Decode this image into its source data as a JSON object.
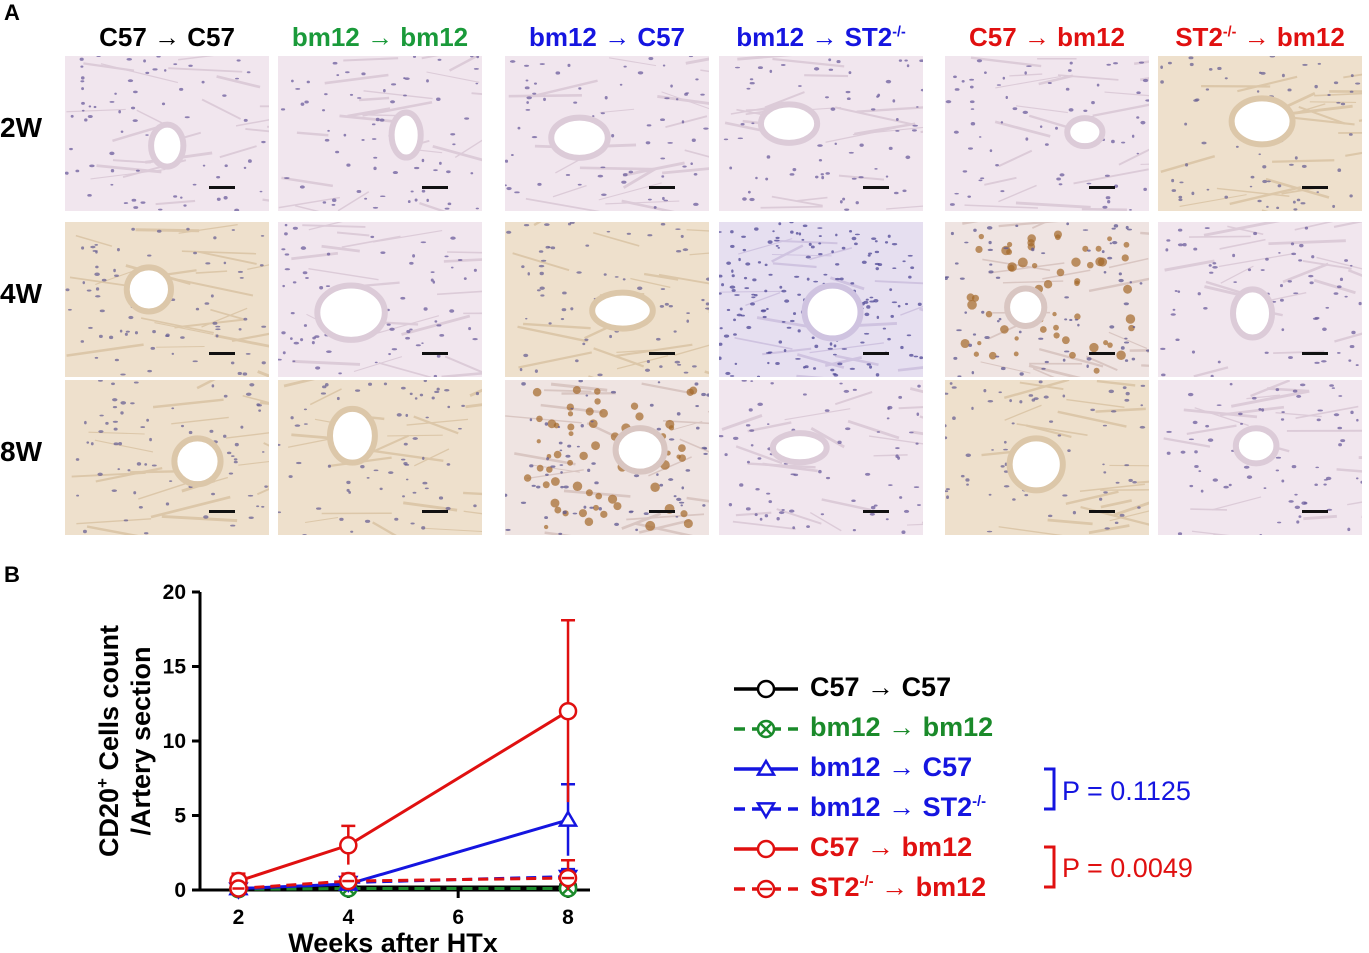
{
  "figure": {
    "panel_a_label": "A",
    "panel_b_label": "B",
    "columns": [
      {
        "label": "C57 → C57",
        "base": "C57 → C57",
        "sup": "",
        "tail": "",
        "color": "#000000",
        "tone": "pink"
      },
      {
        "label": "bm12 → bm12",
        "base": "bm12 → bm12",
        "sup": "",
        "tail": "",
        "color": "#1a9a3a",
        "tone": "pink"
      },
      {
        "label": "bm12 → C57",
        "base": "bm12 → C57",
        "sup": "",
        "tail": "",
        "color": "#1515e0",
        "tone": "pink"
      },
      {
        "label": "bm12 → ST2-/-",
        "base": "bm12 → ST2",
        "sup": "-/-",
        "tail": "",
        "color": "#1515e0",
        "tone": "pink"
      },
      {
        "label": "C57 → bm12",
        "base": "C57 → bm12",
        "sup": "",
        "tail": "",
        "color": "#e01010",
        "tone": "pink"
      },
      {
        "label": "ST2-/- → bm12",
        "base": "ST2",
        "sup": "-/-",
        "tail": " → bm12",
        "color": "#e01010",
        "tone": "tan"
      }
    ],
    "rows": [
      "2W",
      "4W",
      "8W"
    ],
    "tile_tones": [
      [
        "pink",
        "pink",
        "pink",
        "pink",
        "pink",
        "tan"
      ],
      [
        "tan",
        "pink",
        "tan",
        "purple",
        "brown",
        "pink"
      ],
      [
        "tan",
        "tan",
        "brown",
        "pink",
        "tan",
        "pink"
      ]
    ]
  },
  "chart_data": {
    "type": "line",
    "xlabel": "Weeks after HTx",
    "ylabel": "CD20+ Cells count /Artery section",
    "ylabel_line1": "CD20",
    "ylabel_sup": "+",
    "ylabel_line1_tail": " Cells count",
    "ylabel_line2": "/Artery section",
    "x": [
      2,
      4,
      8
    ],
    "xticks": [
      2,
      4,
      6,
      8
    ],
    "yticks": [
      0,
      5,
      10,
      15,
      20
    ],
    "xlim": [
      1.3,
      8.4
    ],
    "ylim": [
      0,
      20
    ],
    "series": [
      {
        "name": "C57 → C57",
        "values": [
          0.1,
          0.2,
          0.2
        ],
        "errors": [
          0.1,
          0.1,
          0.1
        ],
        "color": "#000000",
        "dash": "solid",
        "marker": "circle"
      },
      {
        "name": "bm12 → bm12",
        "values": [
          0.05,
          0.1,
          0.1
        ],
        "errors": [
          0.05,
          0.1,
          0.1
        ],
        "color": "#1a8a2a",
        "dash": "dashed",
        "marker": "circle-x"
      },
      {
        "name": "bm12 → C57",
        "values": [
          0.1,
          0.4,
          4.7
        ],
        "errors": [
          0.1,
          0.2,
          2.4
        ],
        "color": "#1515e0",
        "dash": "solid",
        "marker": "triangle-up"
      },
      {
        "name": "bm12 → ST2-/-",
        "values": [
          0.05,
          0.5,
          0.9
        ],
        "errors": [
          0.05,
          0.2,
          0.5
        ],
        "color": "#1515e0",
        "dash": "dashed",
        "marker": "triangle-down"
      },
      {
        "name": "C57 → bm12",
        "values": [
          0.6,
          3.0,
          12.0
        ],
        "errors": [
          0.5,
          1.3,
          6.1
        ],
        "color": "#e01010",
        "dash": "solid",
        "marker": "circle"
      },
      {
        "name": "ST2-/- → bm12",
        "values": [
          0.1,
          0.6,
          0.8
        ],
        "errors": [
          0.1,
          0.5,
          1.2
        ],
        "color": "#e01010",
        "dash": "dashed",
        "marker": "circle-minus"
      }
    ],
    "legend": [
      {
        "base": "C57",
        "arrow": "→",
        "end": "C57",
        "sup": "",
        "pre_sup": "",
        "color": "#000000"
      },
      {
        "base": "bm12",
        "arrow": "→",
        "end": "bm12",
        "sup": "",
        "pre_sup": "",
        "color": "#1a8a2a"
      },
      {
        "base": "bm12",
        "arrow": "→",
        "end": "C57",
        "sup": "",
        "pre_sup": "",
        "color": "#1515e0"
      },
      {
        "base": "bm12",
        "arrow": "→",
        "end": "ST2",
        "sup": "-/-",
        "pre_sup": "",
        "color": "#1515e0"
      },
      {
        "base": "C57",
        "arrow": "→",
        "end": "bm12",
        "sup": "",
        "pre_sup": "",
        "color": "#e01010"
      },
      {
        "base": "ST2",
        "arrow": "→",
        "end": "bm12",
        "sup": "",
        "pre_sup": "-/-",
        "color": "#e01010"
      }
    ],
    "p_values": [
      {
        "text": "P = 0.1125",
        "color": "#1515e0"
      },
      {
        "text": "P = 0.0049",
        "color": "#e01010"
      }
    ]
  }
}
